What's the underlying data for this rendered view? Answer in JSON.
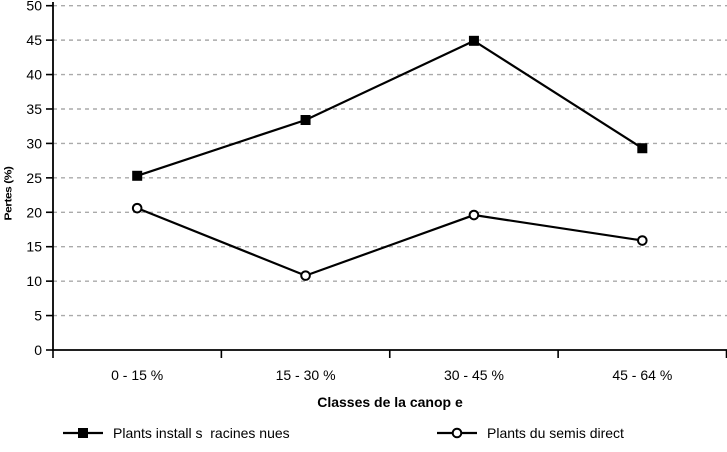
{
  "chart_data": {
    "type": "line",
    "title": "",
    "categories": [
      "0 - 15 %",
      "15 - 30 %",
      "30 - 45 %",
      "45 - 64 %"
    ],
    "series": [
      {
        "name": "Plants install s  racines nues",
        "marker": "filled-square",
        "values": [
          25.3,
          33.4,
          44.9,
          29.3
        ]
      },
      {
        "name": "Plants du semis direct",
        "marker": "open-circle",
        "values": [
          20.6,
          10.8,
          19.6,
          15.9
        ]
      }
    ],
    "xlabel": "Classes de la canop e",
    "ylabel": "Pertes (%)",
    "ylim": [
      0,
      50
    ],
    "ytick_step": 5,
    "grid": "horizontal-dashed",
    "legend_position": "bottom",
    "line_color": "#000000",
    "grid_color": "#aaaaaa",
    "background_color": "#ffffff"
  }
}
